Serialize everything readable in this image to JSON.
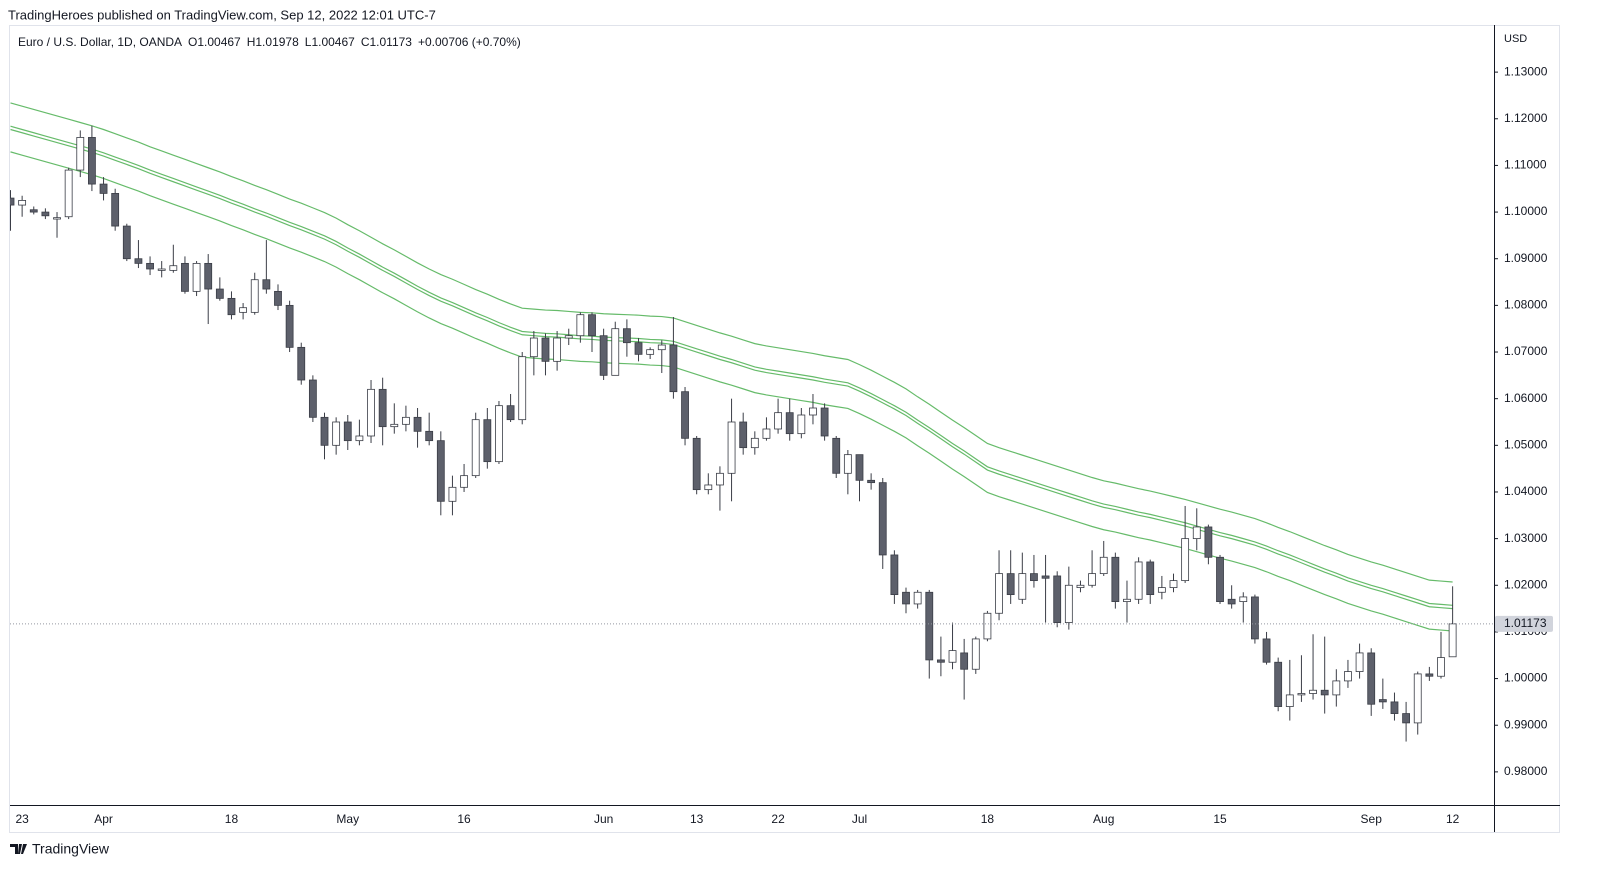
{
  "header": {
    "publisher": "TradingHeroes published on TradingView.com, Sep 12, 2022 12:01 UTC-7"
  },
  "footer": {
    "brand": "TradingView"
  },
  "chart_data": {
    "type": "candlestick",
    "title": "Euro / U.S. Dollar, 1D, OANDA",
    "ohlc_labels": [
      "O1.00467",
      "H1.01978",
      "L1.00467",
      "C1.01173",
      "+0.00706 (+0.70%)"
    ],
    "axis_unit": "USD",
    "last_label": "1.01173",
    "up_color": "#ffffff",
    "down_color": "#5d606b",
    "edge_color": "#3a3d46",
    "categories": [
      null,
      "23",
      null,
      null,
      null,
      null,
      null,
      null,
      "Apr",
      null,
      null,
      null,
      null,
      null,
      null,
      null,
      null,
      null,
      null,
      "18",
      null,
      null,
      null,
      null,
      null,
      null,
      null,
      null,
      null,
      "May",
      null,
      null,
      null,
      null,
      null,
      null,
      null,
      null,
      null,
      "16",
      null,
      null,
      null,
      null,
      null,
      null,
      null,
      null,
      null,
      null,
      null,
      "Jun",
      null,
      null,
      null,
      null,
      null,
      null,
      null,
      "13",
      null,
      null,
      null,
      null,
      null,
      null,
      "22",
      null,
      null,
      null,
      null,
      null,
      null,
      "Jul",
      null,
      null,
      null,
      null,
      null,
      null,
      null,
      null,
      null,
      null,
      "18",
      null,
      null,
      null,
      null,
      null,
      null,
      null,
      null,
      null,
      "Aug",
      null,
      null,
      null,
      null,
      null,
      null,
      null,
      null,
      null,
      "15",
      null,
      null,
      null,
      null,
      null,
      null,
      null,
      null,
      null,
      null,
      null,
      null,
      "Sep",
      null,
      null,
      null,
      null,
      null,
      null,
      "12"
    ],
    "open": [
      1.103,
      1.1015,
      1.1005,
      1.1,
      1.0985,
      1.099,
      1.109,
      1.116,
      1.106,
      1.104,
      1.097,
      1.09,
      1.089,
      1.0875,
      1.0875,
      1.089,
      1.083,
      1.089,
      1.0835,
      1.0815,
      1.0785,
      1.0785,
      1.0855,
      1.083,
      1.08,
      1.071,
      1.064,
      1.056,
      1.05,
      1.055,
      1.051,
      1.052,
      1.062,
      1.054,
      1.0545,
      1.056,
      1.053,
      1.051,
      1.038,
      1.041,
      1.0435,
      1.0555,
      1.0465,
      1.0585,
      1.0555,
      1.069,
      1.073,
      1.068,
      1.073,
      1.0735,
      1.078,
      1.0735,
      1.065,
      1.075,
      1.072,
      1.0695,
      1.0705,
      1.0715,
      1.0615,
      1.0515,
      1.0405,
      1.0415,
      1.044,
      1.055,
      1.0495,
      1.0515,
      1.0535,
      1.057,
      1.0525,
      1.0565,
      1.058,
      1.0515,
      1.044,
      1.048,
      1.0425,
      1.042,
      1.0265,
      1.0185,
      1.016,
      1.0185,
      1.004,
      1.0035,
      1.0055,
      1.002,
      1.0085,
      1.014,
      1.0225,
      1.017,
      1.0225,
      1.022,
      1.022,
      1.012,
      1.0195,
      1.02,
      1.0225,
      1.026,
      1.0165,
      1.017,
      1.025,
      1.0185,
      1.0195,
      1.021,
      1.03,
      1.0325,
      1.026,
      1.017,
      1.0165,
      1.0175,
      1.0085,
      1.0035,
      0.994,
      0.9965,
      0.9968,
      0.9975,
      0.9965,
      0.9995,
      1.0015,
      1.0055,
      0.9955,
      0.995,
      0.9925,
      0.9905,
      1.001,
      1.0005,
      1.00467
    ],
    "high": [
      1.1047,
      1.1035,
      1.1012,
      1.1008,
      1.1,
      1.1095,
      1.1175,
      1.1185,
      1.1075,
      1.105,
      1.0975,
      1.094,
      1.0905,
      1.0895,
      1.093,
      1.0905,
      1.0895,
      1.091,
      1.086,
      1.083,
      1.0805,
      1.087,
      1.094,
      1.0845,
      1.081,
      1.072,
      1.065,
      1.057,
      1.056,
      1.0565,
      1.0555,
      1.064,
      1.0645,
      1.059,
      1.0585,
      1.058,
      1.057,
      1.053,
      1.0435,
      1.046,
      1.057,
      1.058,
      1.0595,
      1.061,
      1.07,
      1.0745,
      1.074,
      1.0745,
      1.075,
      1.0785,
      1.0785,
      1.075,
      1.0765,
      1.077,
      1.073,
      1.071,
      1.0725,
      1.0775,
      1.0625,
      1.052,
      1.044,
      1.0455,
      1.06,
      1.057,
      1.053,
      1.056,
      1.06,
      1.06,
      1.058,
      1.061,
      1.059,
      1.052,
      1.049,
      1.048,
      1.044,
      1.043,
      1.0275,
      1.0195,
      1.019,
      1.019,
      1.009,
      1.012,
      1.0085,
      1.009,
      1.0145,
      1.0275,
      1.0275,
      1.027,
      1.0265,
      1.0265,
      1.023,
      1.024,
      1.021,
      1.0275,
      1.0295,
      1.027,
      1.021,
      1.026,
      1.0255,
      1.022,
      1.0225,
      1.037,
      1.0365,
      1.033,
      1.0265,
      1.02,
      1.0185,
      1.018,
      1.01,
      1.0045,
      1.004,
      1.005,
      1.0095,
      1.009,
      1.002,
      1.004,
      1.0075,
      1.0065,
      1.0,
      0.997,
      0.995,
      1.0015,
      1.0025,
      1.01,
      1.01978
    ],
    "low": [
      1.096,
      1.099,
      1.0995,
      1.0985,
      1.0945,
      1.0985,
      1.1075,
      1.1045,
      1.1025,
      1.096,
      1.0895,
      1.088,
      1.0865,
      1.086,
      1.087,
      1.0825,
      1.082,
      1.076,
      1.081,
      1.077,
      1.077,
      1.078,
      1.0825,
      1.079,
      1.07,
      1.063,
      1.055,
      1.047,
      1.048,
      1.049,
      1.05,
      1.0505,
      1.05,
      1.0525,
      1.053,
      1.0495,
      1.05,
      1.035,
      1.035,
      1.04,
      1.043,
      1.045,
      1.046,
      1.055,
      1.0545,
      1.065,
      1.065,
      1.066,
      1.0715,
      1.072,
      1.07,
      1.064,
      1.065,
      1.069,
      1.068,
      1.0685,
      1.0655,
      1.06,
      1.05,
      1.0395,
      1.0395,
      1.036,
      1.038,
      1.048,
      1.048,
      1.051,
      1.0525,
      1.051,
      1.0515,
      1.0545,
      1.051,
      1.043,
      1.0395,
      1.038,
      1.0405,
      1.0235,
      1.016,
      1.014,
      1.015,
      1.0,
      1.0005,
      1.002,
      0.9955,
      1.001,
      1.008,
      1.0125,
      1.016,
      1.016,
      1.0195,
      1.012,
      1.011,
      1.0105,
      1.0185,
      1.0195,
      1.022,
      1.015,
      1.012,
      1.016,
      1.016,
      1.017,
      1.0185,
      1.0205,
      1.0275,
      1.0245,
      1.016,
      1.015,
      1.012,
      1.0075,
      1.003,
      0.993,
      0.991,
      0.995,
      0.9955,
      0.9925,
      0.994,
      0.998,
      1.0,
      0.992,
      0.9935,
      0.991,
      0.9865,
      0.988,
      0.9995,
      1.0,
      1.00467
    ],
    "close": [
      1.1015,
      1.1025,
      1.1,
      1.0992,
      1.0988,
      1.109,
      1.116,
      1.106,
      1.104,
      1.097,
      1.09,
      1.089,
      1.0878,
      1.0878,
      1.0885,
      1.083,
      1.089,
      1.0835,
      1.0815,
      1.078,
      1.0795,
      1.0855,
      1.0835,
      1.08,
      1.071,
      1.064,
      1.056,
      1.05,
      1.055,
      1.051,
      1.052,
      1.062,
      1.054,
      1.0545,
      1.056,
      1.053,
      1.051,
      1.038,
      1.041,
      1.0435,
      1.0555,
      1.0465,
      1.0585,
      1.0555,
      1.069,
      1.073,
      1.068,
      1.073,
      1.0735,
      1.078,
      1.0735,
      1.065,
      1.075,
      1.072,
      1.0695,
      1.0705,
      1.0715,
      1.0615,
      1.0515,
      1.0405,
      1.0415,
      1.044,
      1.055,
      1.0495,
      1.0515,
      1.0535,
      1.057,
      1.0525,
      1.0565,
      1.058,
      1.052,
      1.044,
      1.048,
      1.0425,
      1.042,
      1.0265,
      1.018,
      1.016,
      1.0185,
      1.004,
      1.0035,
      1.006,
      1.002,
      1.0085,
      1.014,
      1.0225,
      1.018,
      1.0225,
      1.021,
      1.0215,
      1.012,
      1.02,
      1.02,
      1.0225,
      1.026,
      1.0165,
      1.017,
      1.025,
      1.018,
      1.0195,
      1.021,
      1.03,
      1.0325,
      1.026,
      1.0165,
      1.016,
      1.0175,
      1.0085,
      1.0035,
      0.994,
      0.9965,
      0.9968,
      0.9975,
      0.9965,
      0.9995,
      1.0015,
      1.0055,
      0.9945,
      0.995,
      0.9925,
      0.9905,
      1.001,
      1.0005,
      1.0045,
      1.01173
    ],
    "series": [
      {
        "color": "#66bb6a",
        "values": [
          1.1234,
          1.1227,
          1.122,
          1.1213,
          1.1206,
          1.1199,
          1.1192,
          1.1185,
          1.1177,
          1.1168,
          1.1159,
          1.115,
          1.114,
          1.1131,
          1.1122,
          1.1113,
          1.1104,
          1.1095,
          1.1086,
          1.1076,
          1.1067,
          1.1057,
          1.1048,
          1.1038,
          1.1028,
          1.1019,
          1.1009,
          1.0999,
          1.0987,
          1.0973,
          1.096,
          1.0946,
          1.0932,
          1.0919,
          1.0905,
          1.0891,
          1.0878,
          1.0866,
          1.0856,
          1.0845,
          1.0834,
          1.0824,
          1.0813,
          1.0803,
          1.0794,
          1.0792,
          1.079,
          1.0789,
          1.0787,
          1.0785,
          1.0784,
          1.0782,
          1.0781,
          1.078,
          1.0779,
          1.0777,
          1.0776,
          1.0773,
          1.0765,
          1.0757,
          1.0749,
          1.0741,
          1.0734,
          1.0726,
          1.0718,
          1.0713,
          1.0709,
          1.0705,
          1.0701,
          1.0697,
          1.0692,
          1.0688,
          1.0684,
          1.0673,
          1.0661,
          1.0648,
          1.0635,
          1.0621,
          1.0604,
          1.0588,
          1.0571,
          1.0554,
          1.0538,
          1.0521,
          1.0504,
          1.0495,
          1.0487,
          1.0479,
          1.0471,
          1.0463,
          1.0455,
          1.0447,
          1.0439,
          1.0431,
          1.0424,
          1.0419,
          1.0413,
          1.0407,
          1.0402,
          1.0396,
          1.039,
          1.0384,
          1.0377,
          1.037,
          1.0363,
          1.0357,
          1.035,
          1.0343,
          1.0334,
          1.0324,
          1.0315,
          1.0305,
          1.0295,
          1.0285,
          1.0276,
          1.0266,
          1.0258,
          1.025,
          1.0243,
          1.0235,
          1.0227,
          1.0219,
          1.0211,
          1.0209,
          1.0207
        ]
      },
      {
        "color": "#66bb6a",
        "values": [
          1.1184,
          1.1177,
          1.117,
          1.1163,
          1.1156,
          1.1149,
          1.1142,
          1.1135,
          1.1127,
          1.1118,
          1.1109,
          1.11,
          1.109,
          1.1081,
          1.1072,
          1.1063,
          1.1054,
          1.1045,
          1.1036,
          1.1026,
          1.1017,
          1.1007,
          1.0998,
          1.0988,
          1.0978,
          1.0969,
          1.0959,
          1.0949,
          1.0937,
          1.0923,
          1.091,
          1.0896,
          1.0882,
          1.0869,
          1.0855,
          1.0841,
          1.0828,
          1.0816,
          1.0806,
          1.0795,
          1.0784,
          1.0774,
          1.0763,
          1.0753,
          1.0744,
          1.0742,
          1.074,
          1.0739,
          1.0737,
          1.0735,
          1.0734,
          1.0732,
          1.0731,
          1.073,
          1.0729,
          1.0727,
          1.0726,
          1.0723,
          1.0715,
          1.0707,
          1.0699,
          1.0691,
          1.0684,
          1.0676,
          1.0668,
          1.0663,
          1.0659,
          1.0655,
          1.0651,
          1.0647,
          1.0642,
          1.0638,
          1.0634,
          1.0623,
          1.0611,
          1.0598,
          1.0585,
          1.0571,
          1.0554,
          1.0538,
          1.0521,
          1.0504,
          1.0488,
          1.0471,
          1.0454,
          1.0445,
          1.0437,
          1.0429,
          1.0421,
          1.0413,
          1.0405,
          1.0397,
          1.0389,
          1.0381,
          1.0374,
          1.0369,
          1.0363,
          1.0357,
          1.0352,
          1.0346,
          1.034,
          1.0334,
          1.0327,
          1.032,
          1.0313,
          1.0307,
          1.03,
          1.0293,
          1.0284,
          1.0274,
          1.0265,
          1.0255,
          1.0245,
          1.0235,
          1.0226,
          1.0216,
          1.0208,
          1.02,
          1.0193,
          1.0185,
          1.0177,
          1.0169,
          1.0161,
          1.0159,
          1.0157
        ]
      },
      {
        "color": "#66bb6a",
        "values": [
          1.1177,
          1.117,
          1.1163,
          1.1156,
          1.1149,
          1.1142,
          1.1135,
          1.1128,
          1.112,
          1.1111,
          1.1102,
          1.1093,
          1.1083,
          1.1074,
          1.1065,
          1.1056,
          1.1047,
          1.1038,
          1.1029,
          1.1019,
          1.101,
          1.1,
          1.0991,
          1.0981,
          1.0971,
          1.0962,
          1.0952,
          1.0942,
          1.093,
          1.0916,
          1.0903,
          1.0889,
          1.0875,
          1.0862,
          1.0848,
          1.0834,
          1.0821,
          1.0809,
          1.0799,
          1.0788,
          1.0777,
          1.0767,
          1.0756,
          1.0746,
          1.0737,
          1.0735,
          1.0733,
          1.0732,
          1.073,
          1.0728,
          1.0727,
          1.0725,
          1.0724,
          1.0723,
          1.0722,
          1.072,
          1.0719,
          1.0716,
          1.0708,
          1.07,
          1.0692,
          1.0684,
          1.0677,
          1.0669,
          1.0661,
          1.0656,
          1.0652,
          1.0648,
          1.0644,
          1.064,
          1.0635,
          1.0631,
          1.0627,
          1.0616,
          1.0604,
          1.0591,
          1.0578,
          1.0564,
          1.0547,
          1.0531,
          1.0514,
          1.0497,
          1.0481,
          1.0464,
          1.0447,
          1.0438,
          1.043,
          1.0422,
          1.0414,
          1.0406,
          1.0398,
          1.039,
          1.0382,
          1.0374,
          1.0367,
          1.0362,
          1.0356,
          1.035,
          1.0345,
          1.0339,
          1.0333,
          1.0327,
          1.032,
          1.0313,
          1.0306,
          1.03,
          1.0293,
          1.0286,
          1.0277,
          1.0267,
          1.0258,
          1.0248,
          1.0238,
          1.0228,
          1.0219,
          1.0209,
          1.0201,
          1.0193,
          1.0186,
          1.0178,
          1.017,
          1.0162,
          1.0154,
          1.0152,
          1.015
        ]
      },
      {
        "color": "#66bb6a",
        "values": [
          1.1129,
          1.1122,
          1.1115,
          1.1108,
          1.1101,
          1.1094,
          1.1087,
          1.108,
          1.1072,
          1.1063,
          1.1054,
          1.1045,
          1.1035,
          1.1026,
          1.1017,
          1.1008,
          1.0999,
          1.099,
          1.0981,
          1.0971,
          1.0962,
          1.0952,
          1.0943,
          1.0933,
          1.0923,
          1.0914,
          1.0904,
          1.0894,
          1.0882,
          1.0868,
          1.0855,
          1.0841,
          1.0827,
          1.0814,
          1.08,
          1.0786,
          1.0773,
          1.0761,
          1.0751,
          1.074,
          1.0729,
          1.0719,
          1.0708,
          1.0698,
          1.0689,
          1.0687,
          1.0685,
          1.0684,
          1.0682,
          1.068,
          1.0679,
          1.0677,
          1.0676,
          1.0675,
          1.0674,
          1.0672,
          1.0671,
          1.0668,
          1.066,
          1.0652,
          1.0644,
          1.0636,
          1.0629,
          1.0621,
          1.0613,
          1.0608,
          1.0604,
          1.06,
          1.0596,
          1.0592,
          1.0587,
          1.0583,
          1.0579,
          1.0568,
          1.0556,
          1.0543,
          1.053,
          1.0516,
          1.0499,
          1.0483,
          1.0466,
          1.0449,
          1.0433,
          1.0416,
          1.0399,
          1.039,
          1.0382,
          1.0374,
          1.0366,
          1.0358,
          1.035,
          1.0342,
          1.0334,
          1.0326,
          1.0319,
          1.0314,
          1.0308,
          1.0302,
          1.0297,
          1.0291,
          1.0285,
          1.0279,
          1.0272,
          1.0265,
          1.0258,
          1.0252,
          1.0245,
          1.0238,
          1.0229,
          1.0219,
          1.021,
          1.02,
          1.019,
          1.018,
          1.0171,
          1.0161,
          1.0153,
          1.0145,
          1.0138,
          1.013,
          1.0122,
          1.0114,
          1.0106,
          1.0104,
          1.0102
        ]
      }
    ],
    "ylim": [
      0.9729,
      1.1401
    ],
    "yticks": [
      {
        "value": 0.98,
        "label": "0.98000"
      },
      {
        "value": 0.99,
        "label": "0.99000"
      },
      {
        "value": 1.0,
        "label": "1.00000"
      },
      {
        "value": 1.01,
        "label": "1.01000"
      },
      {
        "value": 1.02,
        "label": "1.02000"
      },
      {
        "value": 1.03,
        "label": "1.03000"
      },
      {
        "value": 1.04,
        "label": "1.04000"
      },
      {
        "value": 1.05,
        "label": "1.05000"
      },
      {
        "value": 1.06,
        "label": "1.06000"
      },
      {
        "value": 1.07,
        "label": "1.07000"
      },
      {
        "value": 1.08,
        "label": "1.08000"
      },
      {
        "value": 1.09,
        "label": "1.09000"
      },
      {
        "value": 1.1,
        "label": "1.10000"
      },
      {
        "value": 1.11,
        "label": "1.11000"
      },
      {
        "value": 1.12,
        "label": "1.12000"
      },
      {
        "value": 1.13,
        "label": "1.13000"
      }
    ],
    "grid": false
  }
}
